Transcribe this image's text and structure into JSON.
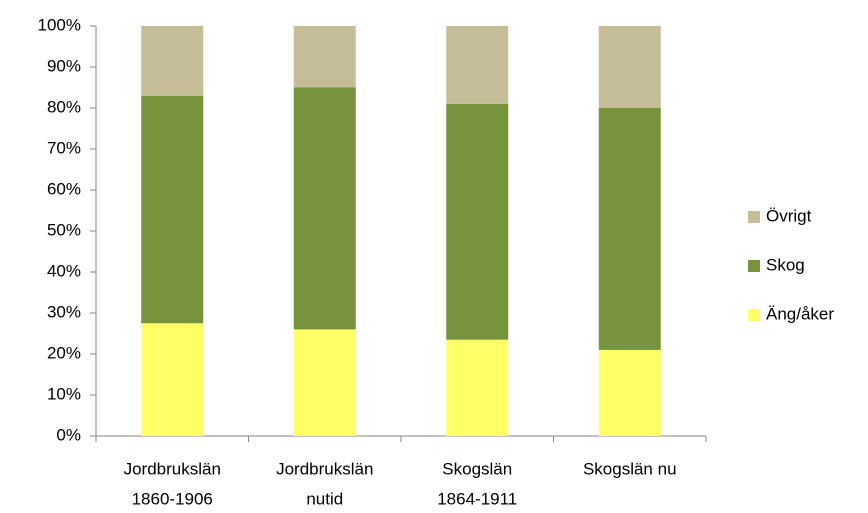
{
  "chart_data": {
    "type": "stacked_bar",
    "categories": [
      [
        "Jordbrukslän",
        "1860-1906"
      ],
      [
        "Jordbrukslän",
        "nutid"
      ],
      [
        "Skogslän",
        "1864-1911"
      ],
      [
        "Skogslän nu"
      ]
    ],
    "series": [
      {
        "name": "Äng/åker",
        "color": "#ffff66",
        "values": [
          27.5,
          26,
          23.5,
          21
        ]
      },
      {
        "name": "Skog",
        "color": "#77933c",
        "values": [
          55.5,
          59,
          57.5,
          59
        ]
      },
      {
        "name": "Övrigt",
        "color": "#c4bd97",
        "values": [
          17,
          15,
          19,
          20
        ]
      }
    ],
    "ylim": [
      0,
      100
    ],
    "yticks": [
      {
        "value": 0,
        "label": "0%"
      },
      {
        "value": 10,
        "label": "10%"
      },
      {
        "value": 20,
        "label": "20%"
      },
      {
        "value": 30,
        "label": "30%"
      },
      {
        "value": 40,
        "label": "40%"
      },
      {
        "value": 50,
        "label": "50%"
      },
      {
        "value": 60,
        "label": "60%"
      },
      {
        "value": 70,
        "label": "70%"
      },
      {
        "value": 80,
        "label": "80%"
      },
      {
        "value": 90,
        "label": "90%"
      },
      {
        "value": 100,
        "label": "100%"
      }
    ],
    "legend": "right"
  }
}
